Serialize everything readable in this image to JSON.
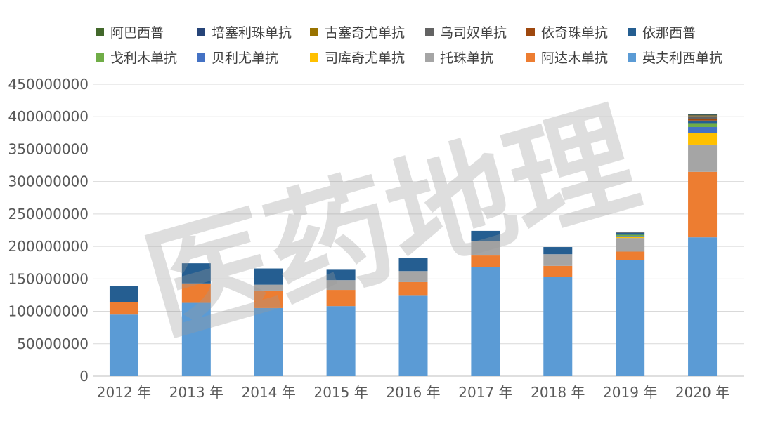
{
  "chart_data": {
    "type": "bar",
    "stacked": true,
    "title": "",
    "xlabel": "",
    "ylabel": "",
    "ylim": [
      0,
      450000000
    ],
    "y_ticks": [
      0,
      50000000,
      100000000,
      150000000,
      200000000,
      250000000,
      300000000,
      350000000,
      400000000,
      450000000
    ],
    "grid": true,
    "legend_position": "top",
    "categories": [
      "2012 年",
      "2013 年",
      "2014 年",
      "2015 年",
      "2016 年",
      "2017 年",
      "2018 年",
      "2019 年",
      "2020 年"
    ],
    "legend_order": [
      "阿巴西普",
      "培塞利珠单抗",
      "古塞奇尤单抗",
      "乌司奴单抗",
      "依奇珠单抗",
      "依那西普",
      "戈利木单抗",
      "贝利尤单抗",
      "司库奇尤单抗",
      "托珠单抗",
      "阿达木单抗",
      "英夫利西单抗"
    ],
    "series": [
      {
        "name": "英夫利西单抗",
        "color": "#5B9BD5",
        "values": [
          95000000,
          113000000,
          105000000,
          108000000,
          124000000,
          168000000,
          153000000,
          179000000,
          214000000
        ]
      },
      {
        "name": "阿达木单抗",
        "color": "#ED7D31",
        "values": [
          19000000,
          30000000,
          27000000,
          25000000,
          21000000,
          18000000,
          17000000,
          13000000,
          101000000
        ]
      },
      {
        "name": "托珠单抗",
        "color": "#A5A5A5",
        "values": [
          0,
          0,
          9000000,
          15000000,
          17000000,
          22000000,
          18000000,
          21000000,
          42000000
        ]
      },
      {
        "name": "司库奇尤单抗",
        "color": "#FFC000",
        "values": [
          0,
          0,
          0,
          0,
          0,
          0,
          0,
          2000000,
          18000000
        ]
      },
      {
        "name": "贝利尤单抗",
        "color": "#4472C4",
        "values": [
          0,
          0,
          0,
          0,
          0,
          0,
          0,
          1000000,
          9000000
        ]
      },
      {
        "name": "戈利木单抗",
        "color": "#70AD47",
        "values": [
          0,
          0,
          0,
          0,
          0,
          0,
          0,
          2000000,
          6000000
        ]
      },
      {
        "name": "依那西普",
        "color": "#255E91",
        "values": [
          25000000,
          31000000,
          25000000,
          16000000,
          20000000,
          16000000,
          11000000,
          3000000,
          4000000
        ]
      },
      {
        "name": "依奇珠单抗",
        "color": "#9E480E",
        "values": [
          0,
          0,
          0,
          0,
          0,
          0,
          0,
          0,
          2000000
        ]
      },
      {
        "name": "乌司奴单抗",
        "color": "#636363",
        "values": [
          0,
          0,
          0,
          0,
          0,
          0,
          0,
          1000000,
          5000000
        ]
      },
      {
        "name": "古塞奇尤单抗",
        "color": "#997300",
        "values": [
          0,
          0,
          0,
          0,
          0,
          0,
          0,
          0,
          1000000
        ]
      },
      {
        "name": "培塞利珠单抗",
        "color": "#264478",
        "values": [
          0,
          0,
          0,
          0,
          0,
          0,
          0,
          0,
          1000000
        ]
      },
      {
        "name": "阿巴西普",
        "color": "#43682B",
        "values": [
          0,
          0,
          0,
          0,
          0,
          0,
          0,
          0,
          1000000
        ]
      }
    ]
  },
  "watermark": {
    "text": "医药地理"
  }
}
